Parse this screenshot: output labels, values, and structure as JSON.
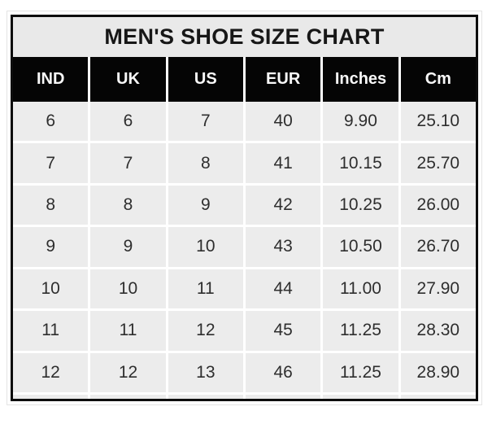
{
  "chart_data": {
    "type": "table",
    "title": "MEN'S SHOE SIZE CHART",
    "columns": [
      "IND",
      "UK",
      "US",
      "EUR",
      "Inches",
      "Cm"
    ],
    "rows": [
      [
        "6",
        "6",
        "7",
        "40",
        "9.90",
        "25.10"
      ],
      [
        "7",
        "7",
        "8",
        "41",
        "10.15",
        "25.70"
      ],
      [
        "8",
        "8",
        "9",
        "42",
        "10.25",
        "26.00"
      ],
      [
        "9",
        "9",
        "10",
        "43",
        "10.50",
        "26.70"
      ],
      [
        "10",
        "10",
        "11",
        "44",
        "11.00",
        "27.90"
      ],
      [
        "11",
        "11",
        "12",
        "45",
        "11.25",
        "28.30"
      ],
      [
        "12",
        "12",
        "13",
        "46",
        "11.25",
        "28.90"
      ]
    ],
    "layout": {
      "legend": "none",
      "grid": "white separator lines between gray cells",
      "title_position": "top merged row"
    }
  },
  "colors": {
    "page_background": "#ffffff",
    "outer_border": "#0d0d0d",
    "title_background": "#e9e9e9",
    "title_text": "#171717",
    "header_background": "#050505",
    "header_text": "#f8f8f8",
    "cell_background": "#ececec",
    "cell_text": "#2e2e2e",
    "separator": "#ffffff"
  }
}
